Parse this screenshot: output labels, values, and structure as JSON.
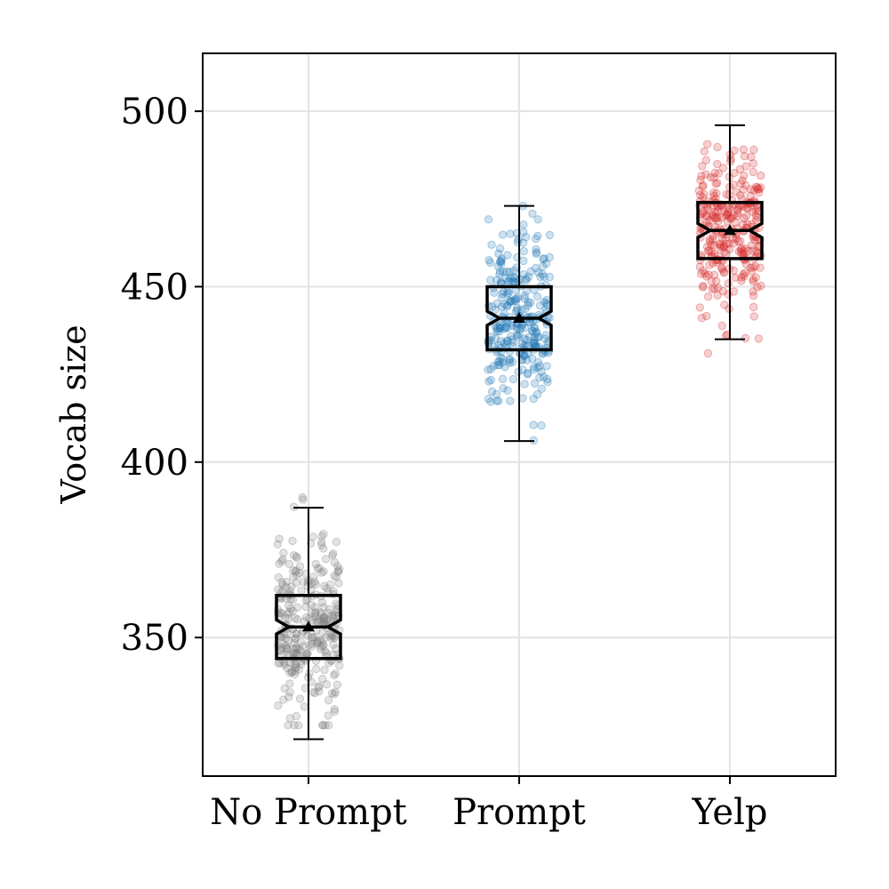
{
  "chart_data": {
    "type": "box",
    "title": "",
    "xlabel": "",
    "ylabel": "Vocab size",
    "categories": [
      "No Prompt",
      "Prompt",
      "Yelp"
    ],
    "ylim": [
      310.5,
      516.5
    ],
    "yticks": [
      350,
      400,
      450,
      500
    ],
    "grid": true,
    "notched": true,
    "show_mean": true,
    "jitter_points_per_group": 300,
    "boxes": [
      {
        "category": "No Prompt",
        "color": "#7f7f7f",
        "whisker_low": 321,
        "q1": 344,
        "median": 353,
        "q3": 362,
        "whisker_high": 387,
        "mean": 353,
        "notch_low": 351,
        "notch_high": 355,
        "points_min": 325,
        "points_max": 392
      },
      {
        "category": "Prompt",
        "color": "#1f77b4",
        "whisker_low": 406,
        "q1": 432,
        "median": 441,
        "q3": 450,
        "whisker_high": 473,
        "mean": 441,
        "notch_low": 439,
        "notch_high": 443,
        "points_min": 398,
        "points_max": 473
      },
      {
        "category": "Yelp",
        "color": "#d62728",
        "whisker_low": 435,
        "q1": 458,
        "median": 466,
        "q3": 474,
        "whisker_high": 496,
        "mean": 466,
        "notch_low": 464,
        "notch_high": 468,
        "points_min": 431,
        "points_max": 506
      }
    ]
  }
}
